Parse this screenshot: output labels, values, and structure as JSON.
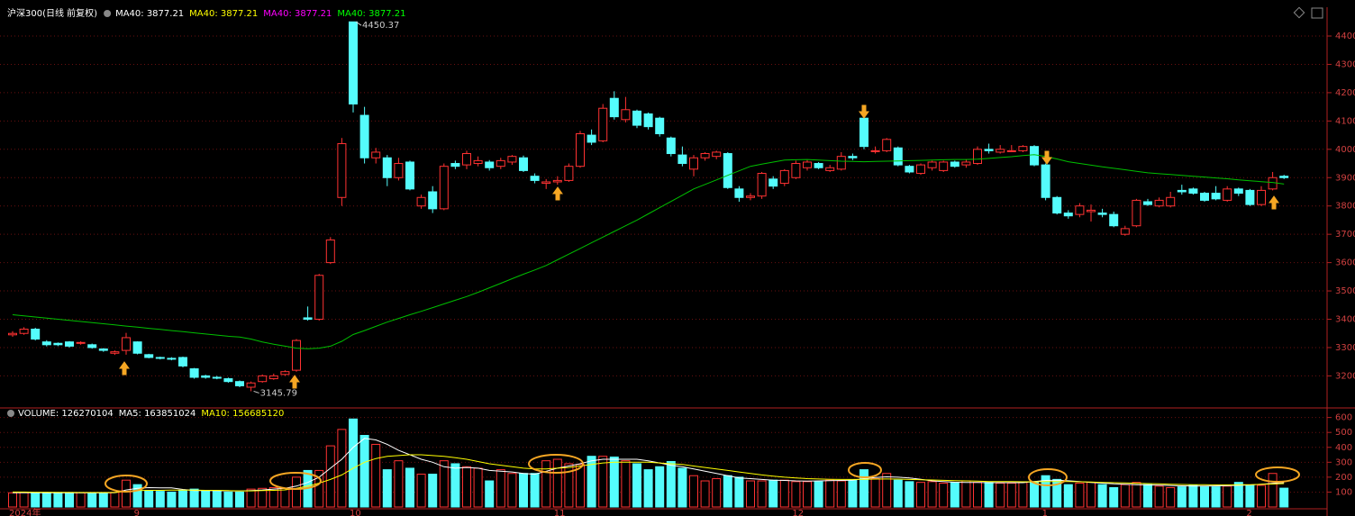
{
  "chart_data": [
    {
      "type": "candlestick",
      "title": "沪深300(日线 前复权)",
      "header_items": [
        {
          "text": "MA40: 3877.21",
          "color": "#ffffff"
        },
        {
          "text": "MA40: 3877.21",
          "color": "#ffff00"
        },
        {
          "text": "MA40: 3877.21",
          "color": "#ff00ff"
        },
        {
          "text": "MA40: 3877.21",
          "color": "#00ff00"
        }
      ],
      "up_color": "#ff3232",
      "down_color": "#54fcfc",
      "open": [
        3345,
        3350,
        3365,
        3320,
        3315,
        3320,
        3315,
        3310,
        3295,
        3280,
        3290,
        3320,
        3275,
        3265,
        3262,
        3265,
        3225,
        3200,
        3195,
        3190,
        3180,
        3160,
        3180,
        3190,
        3205,
        3220,
        3405,
        3400,
        3600,
        3830,
        4450,
        4120,
        3970,
        3970,
        3900,
        3955,
        3800,
        3850,
        3790,
        3950,
        3945,
        3950,
        3955,
        3940,
        3955,
        3970,
        3905,
        3880,
        3885,
        3890,
        3940,
        4050,
        4030,
        4180,
        4105,
        4135,
        4125,
        4110,
        4040,
        3980,
        3930,
        3970,
        3975,
        3985,
        3860,
        3830,
        3835,
        3895,
        3880,
        3900,
        3935,
        3950,
        3925,
        3930,
        3975,
        4110,
        3995,
        3995,
        4005,
        3940,
        3915,
        3935,
        3925,
        3955,
        3945,
        3950,
        4000,
        3990,
        3995,
        3995,
        4010,
        3945,
        3830,
        3775,
        3770,
        3780,
        3775,
        3770,
        3700,
        3730,
        3815,
        3800,
        3800,
        3855,
        3860,
        3845,
        3845,
        3820,
        3860,
        3855,
        3805,
        3860,
        3905
      ],
      "high": [
        3358,
        3372,
        3370,
        3326,
        3318,
        3323,
        3322,
        3314,
        3298,
        3290,
        3352,
        3322,
        3278,
        3268,
        3266,
        3268,
        3228,
        3204,
        3200,
        3194,
        3184,
        3180,
        3205,
        3208,
        3220,
        3330,
        3445,
        3560,
        3690,
        4040,
        4450.37,
        4150,
        4005,
        3980,
        3970,
        3960,
        3840,
        3870,
        3950,
        3960,
        3995,
        3975,
        3962,
        3970,
        3980,
        3978,
        3915,
        3895,
        3905,
        3950,
        4065,
        4070,
        4160,
        4205,
        4185,
        4140,
        4130,
        4115,
        4045,
        4010,
        3980,
        3990,
        3995,
        3990,
        3870,
        3845,
        3920,
        3905,
        3930,
        3960,
        3962,
        3955,
        3945,
        3990,
        3985,
        4115,
        4010,
        4040,
        4010,
        3945,
        3950,
        3960,
        3960,
        3960,
        3965,
        4010,
        4020,
        4015,
        4015,
        4015,
        4015,
        3950,
        3835,
        3785,
        3810,
        3805,
        3790,
        3780,
        3730,
        3825,
        3825,
        3830,
        3850,
        3875,
        3865,
        3850,
        3870,
        3870,
        3865,
        3860,
        3870,
        3920,
        3910
      ],
      "low": [
        3338,
        3345,
        3325,
        3304,
        3305,
        3300,
        3310,
        3296,
        3285,
        3274,
        3275,
        3276,
        3262,
        3258,
        3255,
        3230,
        3190,
        3190,
        3188,
        3176,
        3160,
        3145.79,
        3176,
        3186,
        3200,
        3215,
        3395,
        3395,
        3595,
        3800,
        4130,
        3950,
        3950,
        3870,
        3890,
        3855,
        3790,
        3775,
        3785,
        3930,
        3930,
        3940,
        3925,
        3930,
        3945,
        3920,
        3880,
        3860,
        3875,
        3885,
        3935,
        4015,
        4025,
        4105,
        4095,
        4075,
        4070,
        4045,
        3975,
        3940,
        3905,
        3960,
        3965,
        3860,
        3815,
        3820,
        3825,
        3860,
        3870,
        3895,
        3925,
        3930,
        3920,
        3925,
        3962,
        4000,
        3985,
        3990,
        3940,
        3915,
        3910,
        3925,
        3920,
        3935,
        3935,
        3945,
        3985,
        3985,
        3990,
        3990,
        3940,
        3820,
        3770,
        3755,
        3760,
        3745,
        3760,
        3725,
        3695,
        3725,
        3800,
        3795,
        3795,
        3840,
        3840,
        3815,
        3820,
        3815,
        3835,
        3800,
        3800,
        3855,
        3895
      ],
      "close": [
        3350,
        3365,
        3330,
        3310,
        3310,
        3305,
        3318,
        3300,
        3290,
        3285,
        3335,
        3280,
        3265,
        3262,
        3260,
        3235,
        3195,
        3195,
        3192,
        3180,
        3165,
        3175,
        3200,
        3200,
        3215,
        3325,
        3400,
        3555,
        3680,
        4020,
        4160,
        3970,
        3990,
        3900,
        3950,
        3860,
        3830,
        3790,
        3940,
        3940,
        3985,
        3960,
        3935,
        3960,
        3975,
        3925,
        3890,
        3885,
        3890,
        3940,
        4055,
        4025,
        4145,
        4115,
        4140,
        4085,
        4080,
        4055,
        3985,
        3950,
        3970,
        3985,
        3990,
        3865,
        3830,
        3835,
        3915,
        3870,
        3925,
        3950,
        3955,
        3935,
        3935,
        3975,
        3970,
        4010,
        3995,
        4035,
        3945,
        3920,
        3945,
        3955,
        3955,
        3940,
        3955,
        4000,
        3995,
        4000,
        3995,
        4010,
        3945,
        3830,
        3775,
        3765,
        3800,
        3785,
        3770,
        3730,
        3720,
        3820,
        3805,
        3820,
        3830,
        3850,
        3845,
        3820,
        3825,
        3860,
        3845,
        3805,
        3855,
        3900,
        3900
      ],
      "series": [
        {
          "name": "MA40",
          "color": "#00c000",
          "values": [
            3416,
            3412,
            3408,
            3404,
            3400,
            3396,
            3392,
            3388,
            3384,
            3380,
            3376,
            3372,
            3368,
            3364,
            3360,
            3356,
            3352,
            3348,
            3344,
            3340,
            3337,
            3330,
            3320,
            3312,
            3305,
            3298,
            3296,
            3298,
            3305,
            3322,
            3346,
            3360,
            3375,
            3390,
            3403,
            3416,
            3428,
            3441,
            3454,
            3467,
            3480,
            3495,
            3511,
            3527,
            3543,
            3559,
            3574,
            3590,
            3610,
            3630,
            3650,
            3670,
            3690,
            3710,
            3730,
            3750,
            3772,
            3794,
            3816,
            3838,
            3860,
            3876,
            3892,
            3908,
            3924,
            3940,
            3948,
            3955,
            3962,
            3963,
            3964,
            3962,
            3960,
            3958,
            3957,
            3956,
            3957,
            3958,
            3959,
            3960,
            3961,
            3962,
            3963,
            3964,
            3964,
            3965,
            3968,
            3971,
            3974,
            3978,
            3981,
            3975,
            3966,
            3956,
            3950,
            3944,
            3938,
            3933,
            3928,
            3922,
            3917,
            3914,
            3911,
            3908,
            3905,
            3902,
            3899,
            3896,
            3892,
            3889,
            3886,
            3883,
            3877.21
          ]
        }
      ],
      "ylim": [
        3090,
        4470
      ],
      "yticks": [
        3200,
        3300,
        3400,
        3500,
        3600,
        3700,
        3800,
        3900,
        4000,
        4100,
        4200,
        4300,
        4400
      ],
      "grid": true,
      "max_label": "4450.37",
      "min_label": "3145.79"
    },
    {
      "type": "bar",
      "title": "VOLUME: 126270104",
      "header_items": [
        {
          "text": "MA5: 163851024",
          "color": "#ffffff"
        },
        {
          "text": "MA10: 156685120",
          "color": "#ffff00"
        }
      ],
      "categories": [
        "2024年",
        null,
        null,
        null,
        null,
        null,
        null,
        null,
        null,
        null,
        null,
        "9",
        null,
        null,
        null,
        null,
        null,
        null,
        null,
        null,
        null,
        null,
        null,
        null,
        null,
        null,
        null,
        null,
        null,
        null,
        "10",
        null,
        null,
        null,
        null,
        null,
        null,
        null,
        null,
        null,
        null,
        null,
        null,
        null,
        null,
        null,
        null,
        null,
        "11",
        null,
        null,
        null,
        null,
        null,
        null,
        null,
        null,
        null,
        null,
        null,
        null,
        null,
        null,
        null,
        null,
        null,
        null,
        null,
        null,
        "12",
        null,
        null,
        null,
        null,
        null,
        null,
        null,
        null,
        null,
        null,
        null,
        null,
        null,
        null,
        null,
        null,
        null,
        null,
        null,
        null,
        null,
        "1",
        null,
        null,
        null,
        null,
        null,
        null,
        null,
        null,
        null,
        null,
        null,
        null,
        null,
        null,
        null,
        null,
        null,
        "2",
        null,
        null,
        null
      ],
      "values": [
        95,
        96,
        95,
        94,
        97,
        95,
        96,
        95,
        96,
        98,
        180,
        150,
        110,
        105,
        100,
        110,
        120,
        110,
        105,
        100,
        100,
        120,
        125,
        130,
        125,
        200,
        245,
        245,
        410,
        520,
        590,
        480,
        420,
        250,
        310,
        260,
        220,
        220,
        310,
        290,
        270,
        260,
        175,
        250,
        225,
        225,
        225,
        310,
        320,
        290,
        285,
        340,
        340,
        335,
        310,
        290,
        250,
        270,
        305,
        260,
        210,
        175,
        190,
        210,
        200,
        175,
        175,
        180,
        180,
        170,
        170,
        170,
        180,
        175,
        180,
        250,
        190,
        225,
        180,
        170,
        165,
        170,
        160,
        165,
        175,
        165,
        165,
        160,
        160,
        165,
        170,
        210,
        185,
        150,
        160,
        165,
        150,
        130,
        150,
        165,
        150,
        140,
        130,
        135,
        145,
        135,
        135,
        140,
        165,
        145,
        145,
        225,
        126.27
      ],
      "series": [
        {
          "name": "MA5",
          "color": "#ffffff",
          "values": [
            96,
            96,
            96,
            95,
            95,
            95,
            95,
            95,
            95,
            96,
            114,
            125,
            130,
            128,
            128,
            118,
            110,
            110,
            109,
            108,
            107,
            110,
            114,
            120,
            125,
            140,
            165,
            200,
            260,
            320,
            400,
            460,
            450,
            420,
            380,
            350,
            320,
            300,
            270,
            260,
            265,
            260,
            245,
            240,
            235,
            225,
            220,
            240,
            260,
            275,
            290,
            310,
            320,
            320,
            320,
            320,
            310,
            295,
            280,
            270,
            255,
            240,
            225,
            210,
            195,
            190,
            185,
            180,
            178,
            175,
            174,
            175,
            177,
            178,
            180,
            190,
            198,
            202,
            200,
            195,
            186,
            175,
            170,
            166,
            165,
            164,
            163,
            163,
            163,
            163,
            170,
            178,
            180,
            176,
            170,
            165,
            160,
            155,
            152,
            150,
            148,
            146,
            144,
            142,
            140,
            140,
            141,
            143,
            145,
            148,
            152,
            158,
            163.85
          ]
        },
        {
          "name": "MA10",
          "color": "#ffff00",
          "values": [
            100,
            100,
            99,
            99,
            98,
            98,
            97,
            97,
            97,
            97,
            105,
            110,
            112,
            112,
            113,
            113,
            113,
            112,
            112,
            110,
            108,
            108,
            110,
            112,
            115,
            125,
            140,
            160,
            185,
            215,
            260,
            300,
            325,
            340,
            345,
            350,
            350,
            345,
            340,
            330,
            320,
            305,
            290,
            280,
            270,
            260,
            255,
            255,
            260,
            265,
            275,
            285,
            295,
            300,
            300,
            300,
            300,
            295,
            290,
            285,
            275,
            265,
            255,
            245,
            235,
            225,
            215,
            207,
            200,
            195,
            190,
            188,
            186,
            185,
            185,
            186,
            187,
            188,
            187,
            185,
            183,
            181,
            179,
            177,
            175,
            173,
            171,
            170,
            170,
            169,
            169,
            170,
            170,
            170,
            169,
            167,
            165,
            163,
            161,
            159,
            157,
            155,
            153,
            151,
            150,
            149,
            148,
            148,
            149,
            150,
            152,
            154,
            156.69
          ]
        }
      ],
      "ylim": [
        0,
        640
      ],
      "yticks": [
        100,
        200,
        300,
        400,
        500,
        600
      ],
      "grid": true
    }
  ]
}
